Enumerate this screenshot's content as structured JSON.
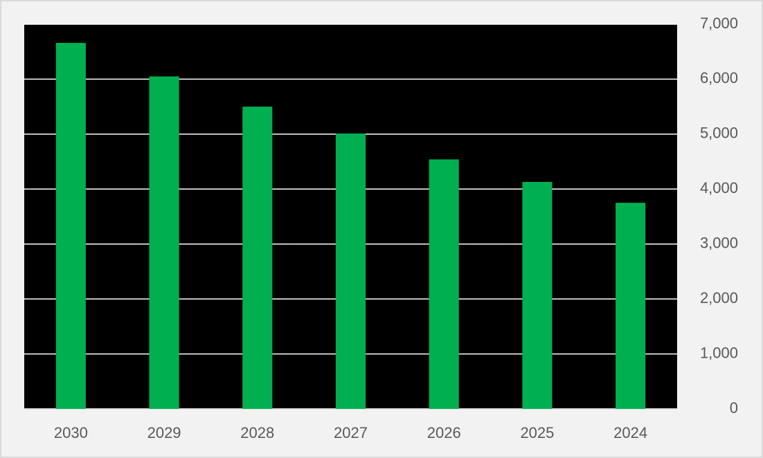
{
  "chart_data": {
    "type": "bar",
    "categories": [
      "2030",
      "2029",
      "2028",
      "2027",
      "2026",
      "2025",
      "2024"
    ],
    "values": [
      6660,
      6050,
      5500,
      5010,
      4540,
      4130,
      3750
    ],
    "color": "#00b050",
    "plot_background": "#000000",
    "y_axis_side": "right",
    "ylim": [
      0,
      7000
    ],
    "yticks": [
      0,
      {
        "value": 1000,
        "label": "1,000"
      },
      {
        "value": 2000,
        "label": "2,000"
      },
      {
        "value": 3000,
        "label": "3,000"
      },
      {
        "value": 4000,
        "label": "4,000"
      },
      {
        "value": 5000,
        "label": "5,000"
      },
      {
        "value": 6000,
        "label": "6,000"
      },
      {
        "value": 7000,
        "label": "7,000"
      }
    ],
    "grid": true
  }
}
